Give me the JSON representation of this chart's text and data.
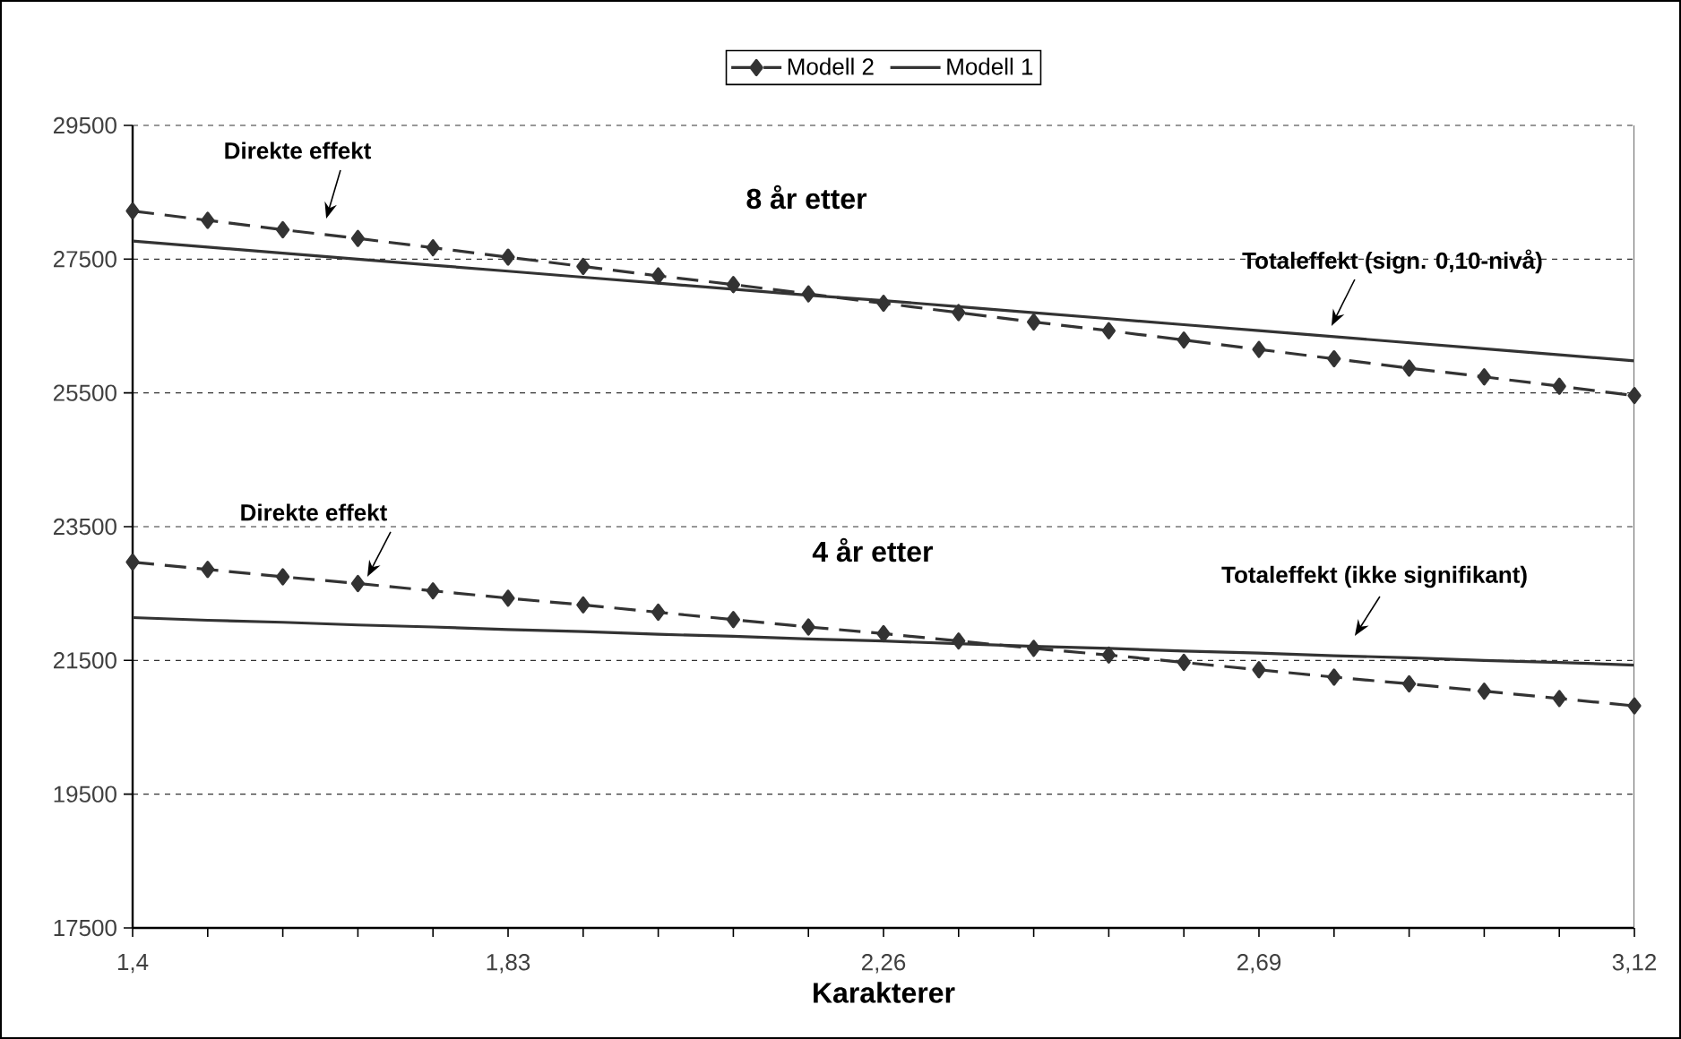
{
  "chart_data": {
    "type": "line",
    "xlabel": "Karakterer",
    "x": [
      1.4,
      1.486,
      1.572,
      1.658,
      1.744,
      1.83,
      1.916,
      2.002,
      2.088,
      2.174,
      2.26,
      2.346,
      2.432,
      2.518,
      2.604,
      2.69,
      2.776,
      2.862,
      2.948,
      3.034,
      3.12
    ],
    "series": [
      {
        "name": "Modell 2",
        "color": "#333333",
        "marker": "diamond",
        "line_style": "dashed",
        "values": [
          28220,
          28080,
          27940,
          27810,
          27670,
          27530,
          27390,
          27250,
          27120,
          26980,
          26840,
          26700,
          26560,
          26430,
          26290,
          26150,
          26010,
          25870,
          25740,
          25600,
          25460
        ]
      },
      {
        "name": "Modell 1",
        "color": "#333333",
        "marker": "none",
        "line_style": "solid",
        "values": [
          27770,
          27680,
          27590,
          27500,
          27410,
          27320,
          27230,
          27140,
          27050,
          26960,
          26880,
          26790,
          26700,
          26610,
          26520,
          26430,
          26340,
          26250,
          26160,
          26070,
          25980
        ]
      },
      {
        "color": "#333333",
        "marker": "diamond",
        "line_style": "dashed",
        "values": [
          22970,
          22860,
          22750,
          22650,
          22540,
          22430,
          22330,
          22220,
          22110,
          22000,
          21900,
          21790,
          21680,
          21580,
          21470,
          21360,
          21250,
          21150,
          21040,
          20930,
          20820
        ]
      },
      {
        "color": "#333333",
        "marker": "none",
        "line_style": "solid",
        "values": [
          22140,
          22100,
          22070,
          22030,
          22000,
          21960,
          21930,
          21890,
          21860,
          21820,
          21790,
          21750,
          21710,
          21680,
          21640,
          21610,
          21570,
          21540,
          21500,
          21470,
          21430
        ]
      }
    ],
    "xlim": [
      1.4,
      3.12
    ],
    "xticks": [
      {
        "value": 1.4,
        "label": "1,4"
      },
      {
        "value": 1.486,
        "label": null
      },
      {
        "value": 1.572,
        "label": null
      },
      {
        "value": 1.658,
        "label": null
      },
      {
        "value": 1.744,
        "label": null
      },
      {
        "value": 1.83,
        "label": "1,83"
      },
      {
        "value": 1.916,
        "label": null
      },
      {
        "value": 2.002,
        "label": null
      },
      {
        "value": 2.088,
        "label": null
      },
      {
        "value": 2.174,
        "label": null
      },
      {
        "value": 2.26,
        "label": "2,26"
      },
      {
        "value": 2.346,
        "label": null
      },
      {
        "value": 2.432,
        "label": null
      },
      {
        "value": 2.518,
        "label": null
      },
      {
        "value": 2.604,
        "label": null
      },
      {
        "value": 2.69,
        "label": "2,69"
      },
      {
        "value": 2.776,
        "label": null
      },
      {
        "value": 2.862,
        "label": null
      },
      {
        "value": 2.948,
        "label": null
      },
      {
        "value": 3.034,
        "label": null
      },
      {
        "value": 3.12,
        "label": "3,12"
      }
    ],
    "ylim": [
      17500,
      29500
    ],
    "yticks": [
      17500,
      19500,
      21500,
      23500,
      25500,
      27500,
      29500
    ],
    "grid": "y",
    "legend": "top",
    "annotations": [
      "Direkte effekt",
      "8 år etter",
      "Totaleffekt (sign. 0,10-nivå)",
      "Direkte effekt",
      "4 år etter",
      "Totaleffekt (ikke signifikant)"
    ]
  }
}
